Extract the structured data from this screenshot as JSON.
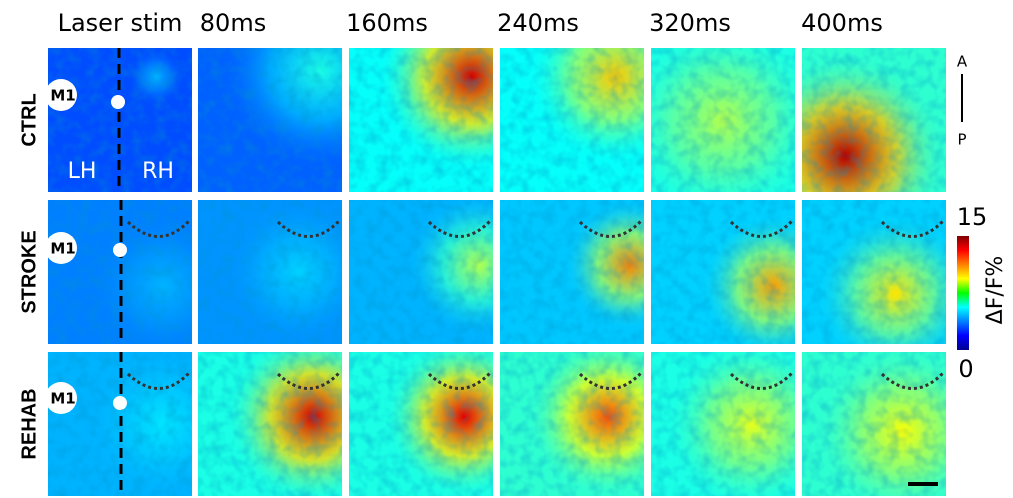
{
  "header": {
    "columns": [
      "Laser stim",
      "80ms",
      "160ms",
      "240ms",
      "320ms",
      "400ms"
    ]
  },
  "rows": [
    "CTRL",
    "STROKE",
    "REHAB"
  ],
  "labels": {
    "region": "M1",
    "left_hemisphere": "LH",
    "right_hemisphere": "RH"
  },
  "orientation": {
    "anterior": "A",
    "posterior": "P"
  },
  "colorbar": {
    "label": "ΔF/F%",
    "max": 15,
    "min": 0
  }
}
